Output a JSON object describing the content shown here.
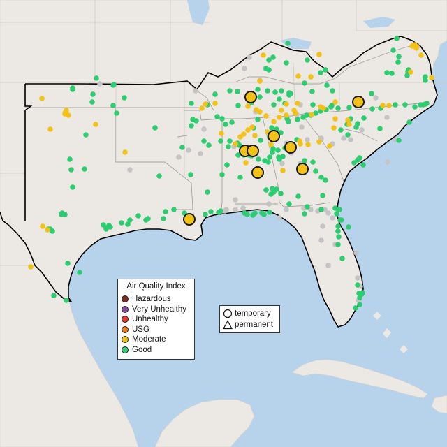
{
  "legend": {
    "title": "Air Quality Index",
    "categories": [
      {
        "label": "Hazardous",
        "color": "#7e2d22"
      },
      {
        "label": "Very Unhealthy",
        "color": "#8b4a9c"
      },
      {
        "label": "Unhealthy",
        "color": "#e2352b"
      },
      {
        "label": "USG",
        "color": "#e67e22"
      },
      {
        "label": "Moderate",
        "color": "#f2c218"
      },
      {
        "label": "Good",
        "color": "#2ecc71"
      }
    ]
  },
  "monitor_types": {
    "temporary": "temporary",
    "permanent": "permanent"
  },
  "colors": {
    "water": "#b7d3ec",
    "land": "#ece8e3",
    "no_data": "#c4c4c4",
    "boundary": "#000000"
  }
}
